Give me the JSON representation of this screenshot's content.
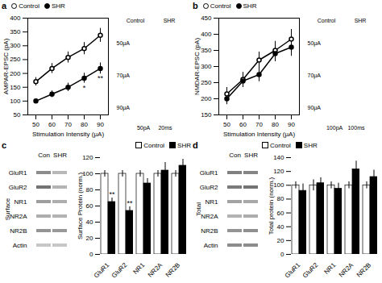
{
  "chart_data": [
    {
      "type": "line",
      "title": "a",
      "xlabel": "Stimulation Intensity (μA)",
      "ylabel": "AMPAR-EPSC (pA)",
      "x": [
        50,
        60,
        70,
        80,
        90
      ],
      "xlim": [
        45,
        95
      ],
      "xticks": [
        50,
        60,
        70,
        80,
        90
      ],
      "ylim": [
        50,
        400
      ],
      "yticks": [
        50,
        100,
        150,
        200,
        250,
        300,
        350,
        400
      ],
      "legend": "upper left",
      "series": [
        {
          "name": "Control",
          "color": "black",
          "marker": "open_circle",
          "values": [
            170,
            218,
            258,
            290,
            338
          ],
          "errors": [
            15,
            18,
            20,
            22,
            25
          ]
        },
        {
          "name": "SHR",
          "color": "black",
          "marker": "filled_circle",
          "values": [
            100,
            125,
            150,
            183,
            218
          ],
          "errors": [
            8,
            12,
            15,
            18,
            20
          ]
        }
      ],
      "annotations": [
        {
          "x": 80,
          "series": "SHR",
          "text": "*"
        },
        {
          "x": 90,
          "series": "SHR",
          "text": "**"
        }
      ]
    },
    {
      "type": "inset",
      "columns": [
        "Control",
        "SHR"
      ],
      "rows": [
        "50μA",
        "70μA",
        "90μA"
      ],
      "scale_labels": [
        "50pA",
        "20ms"
      ]
    },
    {
      "type": "line",
      "title": "b",
      "xlabel": "Stimulation Intensity (μA)",
      "ylabel": "NMDAR-EPSC (pA)",
      "x": [
        50,
        60,
        70,
        80,
        90
      ],
      "xlim": [
        45,
        95
      ],
      "xticks": [
        50,
        60,
        70,
        80,
        90
      ],
      "ylim": [
        150,
        450
      ],
      "yticks": [
        150,
        200,
        250,
        300,
        350,
        400,
        450
      ],
      "legend": "upper left",
      "series": [
        {
          "name": "Control",
          "color": "black",
          "marker": "open_circle",
          "values": [
            215,
            260,
            320,
            350,
            385
          ],
          "errors": [
            20,
            22,
            25,
            28,
            30
          ]
        },
        {
          "name": "SHR",
          "color": "black",
          "marker": "filled_circle",
          "values": [
            200,
            255,
            275,
            340,
            360
          ],
          "errors": [
            18,
            20,
            22,
            25,
            28
          ]
        }
      ]
    },
    {
      "type": "inset",
      "columns": [
        "Control",
        "SHR"
      ],
      "rows": [
        "50μA",
        "70μA",
        "90μA"
      ],
      "scale_labels": [
        "100pA",
        "100ms"
      ]
    },
    {
      "type": "blot",
      "title": "c",
      "ylabel": "Surface",
      "categories": [
        "GluR1",
        "GluR2",
        "NR1",
        "NR2A",
        "NR2B",
        "Actin"
      ],
      "value_range": [
        0,
        1
      ],
      "series": [
        {
          "name": "Con",
          "values": [
            0.45,
            0.55,
            0.38,
            0.32,
            0.42,
            0.22
          ]
        },
        {
          "name": "SHR",
          "values": [
            0.28,
            0.3,
            0.32,
            0.3,
            0.4,
            0.22
          ]
        }
      ]
    },
    {
      "type": "bar",
      "ylabel": "Surface Protein (norm.)",
      "categories": [
        "GluR1",
        "GluR2",
        "NR1",
        "NR2A",
        "NR2B"
      ],
      "ylim": [
        0,
        120
      ],
      "yticks": [
        0,
        20,
        40,
        60,
        80,
        100,
        120
      ],
      "legend": "upper right",
      "series": [
        {
          "name": "Control",
          "color": "white",
          "values": [
            100,
            100,
            100,
            100,
            100
          ],
          "errors": [
            4,
            4,
            4,
            4,
            4
          ]
        },
        {
          "name": "SHR",
          "color": "black",
          "values": [
            65,
            54,
            88,
            104,
            110
          ],
          "errors": [
            5,
            5,
            6,
            10,
            8
          ]
        }
      ],
      "annotations": [
        {
          "category": "GluR1",
          "series": "SHR",
          "text": "**"
        },
        {
          "category": "GluR2",
          "series": "SHR",
          "text": "**"
        }
      ]
    },
    {
      "type": "blot",
      "title": "d",
      "ylabel": "Total",
      "categories": [
        "GluR1",
        "GluR2",
        "NR1",
        "NR2A",
        "NR2B",
        "Actin"
      ],
      "value_range": [
        0,
        1
      ],
      "series": [
        {
          "name": "Con",
          "values": [
            0.5,
            0.52,
            0.36,
            0.3,
            0.42,
            0.45
          ]
        },
        {
          "name": "SHR",
          "values": [
            0.48,
            0.55,
            0.34,
            0.32,
            0.44,
            0.45
          ]
        }
      ]
    },
    {
      "type": "bar",
      "ylabel": "Total protein (norm.)",
      "categories": [
        "GluR1",
        "GluR2",
        "NR1",
        "NR2A",
        "NR2B"
      ],
      "ylim": [
        0,
        140
      ],
      "yticks": [
        0,
        20,
        40,
        60,
        80,
        100,
        120,
        140
      ],
      "legend": "upper left",
      "series": [
        {
          "name": "Control",
          "color": "white",
          "values": [
            100,
            100,
            100,
            100,
            100
          ],
          "errors": [
            5,
            8,
            5,
            5,
            5
          ]
        },
        {
          "name": "SHR",
          "color": "black",
          "values": [
            92,
            103,
            95,
            123,
            112
          ],
          "errors": [
            10,
            8,
            8,
            12,
            10
          ]
        }
      ]
    }
  ]
}
